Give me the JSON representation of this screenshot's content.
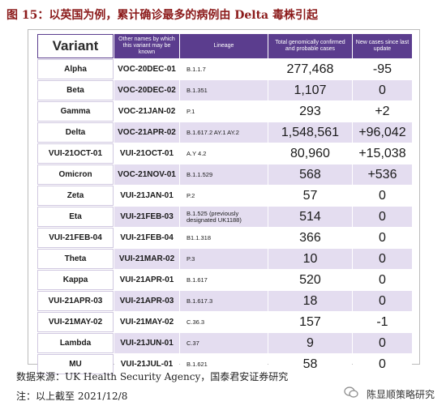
{
  "figure": {
    "title": "图 15：以英国为例，累计确诊最多的病例由 Delta 毒株引起"
  },
  "table": {
    "headers": [
      "Variant",
      "Other names by which this variant may be known",
      "Lineage",
      "Total genomically confirmed and probable cases",
      "New cases since last update"
    ],
    "rows": [
      [
        "Alpha",
        "VOC-20DEC-01",
        "B.1.1.7",
        "277,468",
        "-95"
      ],
      [
        "Beta",
        "VOC-20DEC-02",
        "B.1.351",
        "1,107",
        "0"
      ],
      [
        "Gamma",
        "VOC-21JAN-02",
        "P.1",
        "293",
        "+2"
      ],
      [
        "Delta",
        "VOC-21APR-02",
        "B.1.617.2 AY.1 AY.2",
        "1,548,561",
        "+96,042"
      ],
      [
        "VUI-21OCT-01",
        "VUI-21OCT-01",
        "A.Y 4.2",
        "80,960",
        "+15,038"
      ],
      [
        "Omicron",
        "VOC-21NOV-01",
        "B.1.1.529",
        "568",
        "+536"
      ],
      [
        "Zeta",
        "VUI-21JAN-01",
        "P.2",
        "57",
        "0"
      ],
      [
        "Eta",
        "VUI-21FEB-03",
        "B.1.525 (previously designated UK1188)",
        "514",
        "0"
      ],
      [
        "VUI-21FEB-04",
        "VUI-21FEB-04",
        "B1.1.318",
        "366",
        "0"
      ],
      [
        "Theta",
        "VUI-21MAR-02",
        "P.3",
        "10",
        "0"
      ],
      [
        "Kappa",
        "VUI-21APR-01",
        "B.1.617",
        "520",
        "0"
      ],
      [
        "VUI-21APR-03",
        "VUI-21APR-03",
        "B.1.617.3",
        "18",
        "0"
      ],
      [
        "VUI-21MAY-02",
        "VUI-21MAY-02",
        "C.36.3",
        "157",
        "-1"
      ],
      [
        "Lambda",
        "VUI-21JUN-01",
        "C.37",
        "9",
        "0"
      ],
      [
        "MU",
        "VUI-21JUL-01",
        "B.1.621",
        "58",
        "0"
      ]
    ]
  },
  "footer": {
    "source": "数据来源：UK Health Security Agency，国泰君安证券研究",
    "note": "注：以上截至 2021/12/8",
    "brand": "陈显顺策略研究"
  }
}
